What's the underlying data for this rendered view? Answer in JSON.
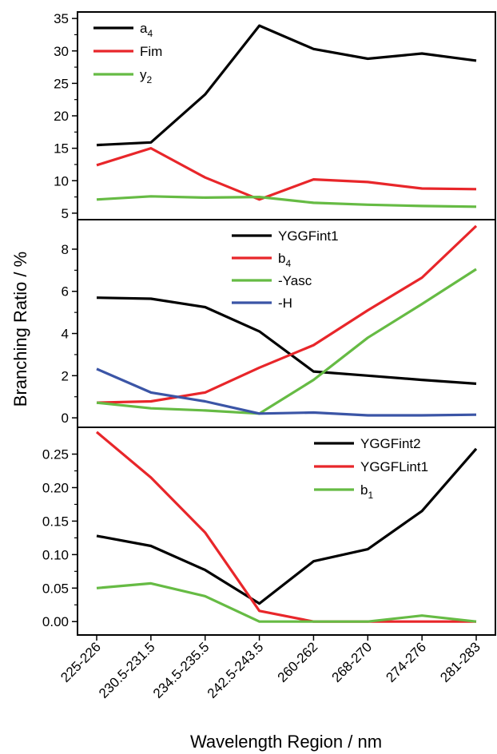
{
  "chart_data": {
    "type": "line",
    "xlabel": "Wavelength Region / nm",
    "ylabel": "Branching Ratio / %",
    "categories": [
      "225-226",
      "230.5-231.5",
      "234.5-235.5",
      "242.5-243.5",
      "260-262",
      "268-270",
      "274-276",
      "281-283"
    ],
    "panels": [
      {
        "ylim": [
          4,
          36
        ],
        "yticks": [
          5,
          10,
          15,
          20,
          25,
          30,
          35
        ],
        "ytick_labels": [
          "5",
          "10",
          "15",
          "20",
          "25",
          "30",
          "35"
        ],
        "legend_position": "top-left",
        "series": [
          {
            "name": "a",
            "subscript": "4",
            "color": "#000000",
            "values": [
              15.5,
              15.9,
              23.3,
              33.9,
              30.3,
              28.8,
              29.6,
              28.5
            ]
          },
          {
            "name": "Fim",
            "subscript": "",
            "color": "#e8262a",
            "values": [
              12.4,
              15.0,
              10.5,
              7.1,
              10.2,
              9.8,
              8.8,
              8.7
            ]
          },
          {
            "name": "y",
            "subscript": "2",
            "color": "#66bb44",
            "values": [
              7.1,
              7.6,
              7.4,
              7.5,
              6.6,
              6.3,
              6.1,
              6.0
            ]
          }
        ]
      },
      {
        "ylim": [
          -0.45,
          9.4
        ],
        "yticks": [
          0,
          2,
          4,
          6,
          8
        ],
        "ytick_labels": [
          "0",
          "2",
          "4",
          "6",
          "8"
        ],
        "legend_position": "top-center",
        "series": [
          {
            "name": "YGGFint1",
            "subscript": "",
            "color": "#000000",
            "values": [
              5.7,
              5.65,
              5.25,
              4.1,
              2.2,
              2.0,
              1.8,
              1.62
            ]
          },
          {
            "name": "b",
            "subscript": "4",
            "color": "#e8262a",
            "values": [
              0.72,
              0.78,
              1.2,
              2.38,
              3.45,
              5.1,
              6.65,
              9.1
            ]
          },
          {
            "name": "-Yasc",
            "subscript": "",
            "color": "#66bb44",
            "values": [
              0.72,
              0.45,
              0.35,
              0.2,
              1.8,
              3.8,
              5.4,
              7.05
            ]
          },
          {
            "name": "-H",
            "subscript": "",
            "color": "#3b55a6",
            "values": [
              2.32,
              1.2,
              0.78,
              0.2,
              0.25,
              0.12,
              0.12,
              0.15
            ]
          }
        ]
      },
      {
        "ylim": [
          -0.02,
          0.29
        ],
        "yticks": [
          0.0,
          0.05,
          0.1,
          0.15,
          0.2,
          0.25
        ],
        "ytick_labels": [
          "0.00",
          "0.05",
          "0.10",
          "0.15",
          "0.20",
          "0.25"
        ],
        "legend_position": "top-right",
        "series": [
          {
            "name": "YGGFint2",
            "subscript": "",
            "color": "#000000",
            "values": [
              0.128,
              0.113,
              0.077,
              0.027,
              0.09,
              0.108,
              0.165,
              0.258
            ]
          },
          {
            "name": "YGGFLint1",
            "subscript": "",
            "color": "#e8262a",
            "values": [
              0.283,
              0.215,
              0.133,
              0.016,
              0.0,
              0.0,
              0.0,
              0.0
            ]
          },
          {
            "name": "b",
            "subscript": "1",
            "color": "#66bb44",
            "values": [
              0.05,
              0.057,
              0.038,
              0.0,
              0.0,
              0.0,
              0.009,
              0.0
            ]
          }
        ]
      }
    ]
  }
}
